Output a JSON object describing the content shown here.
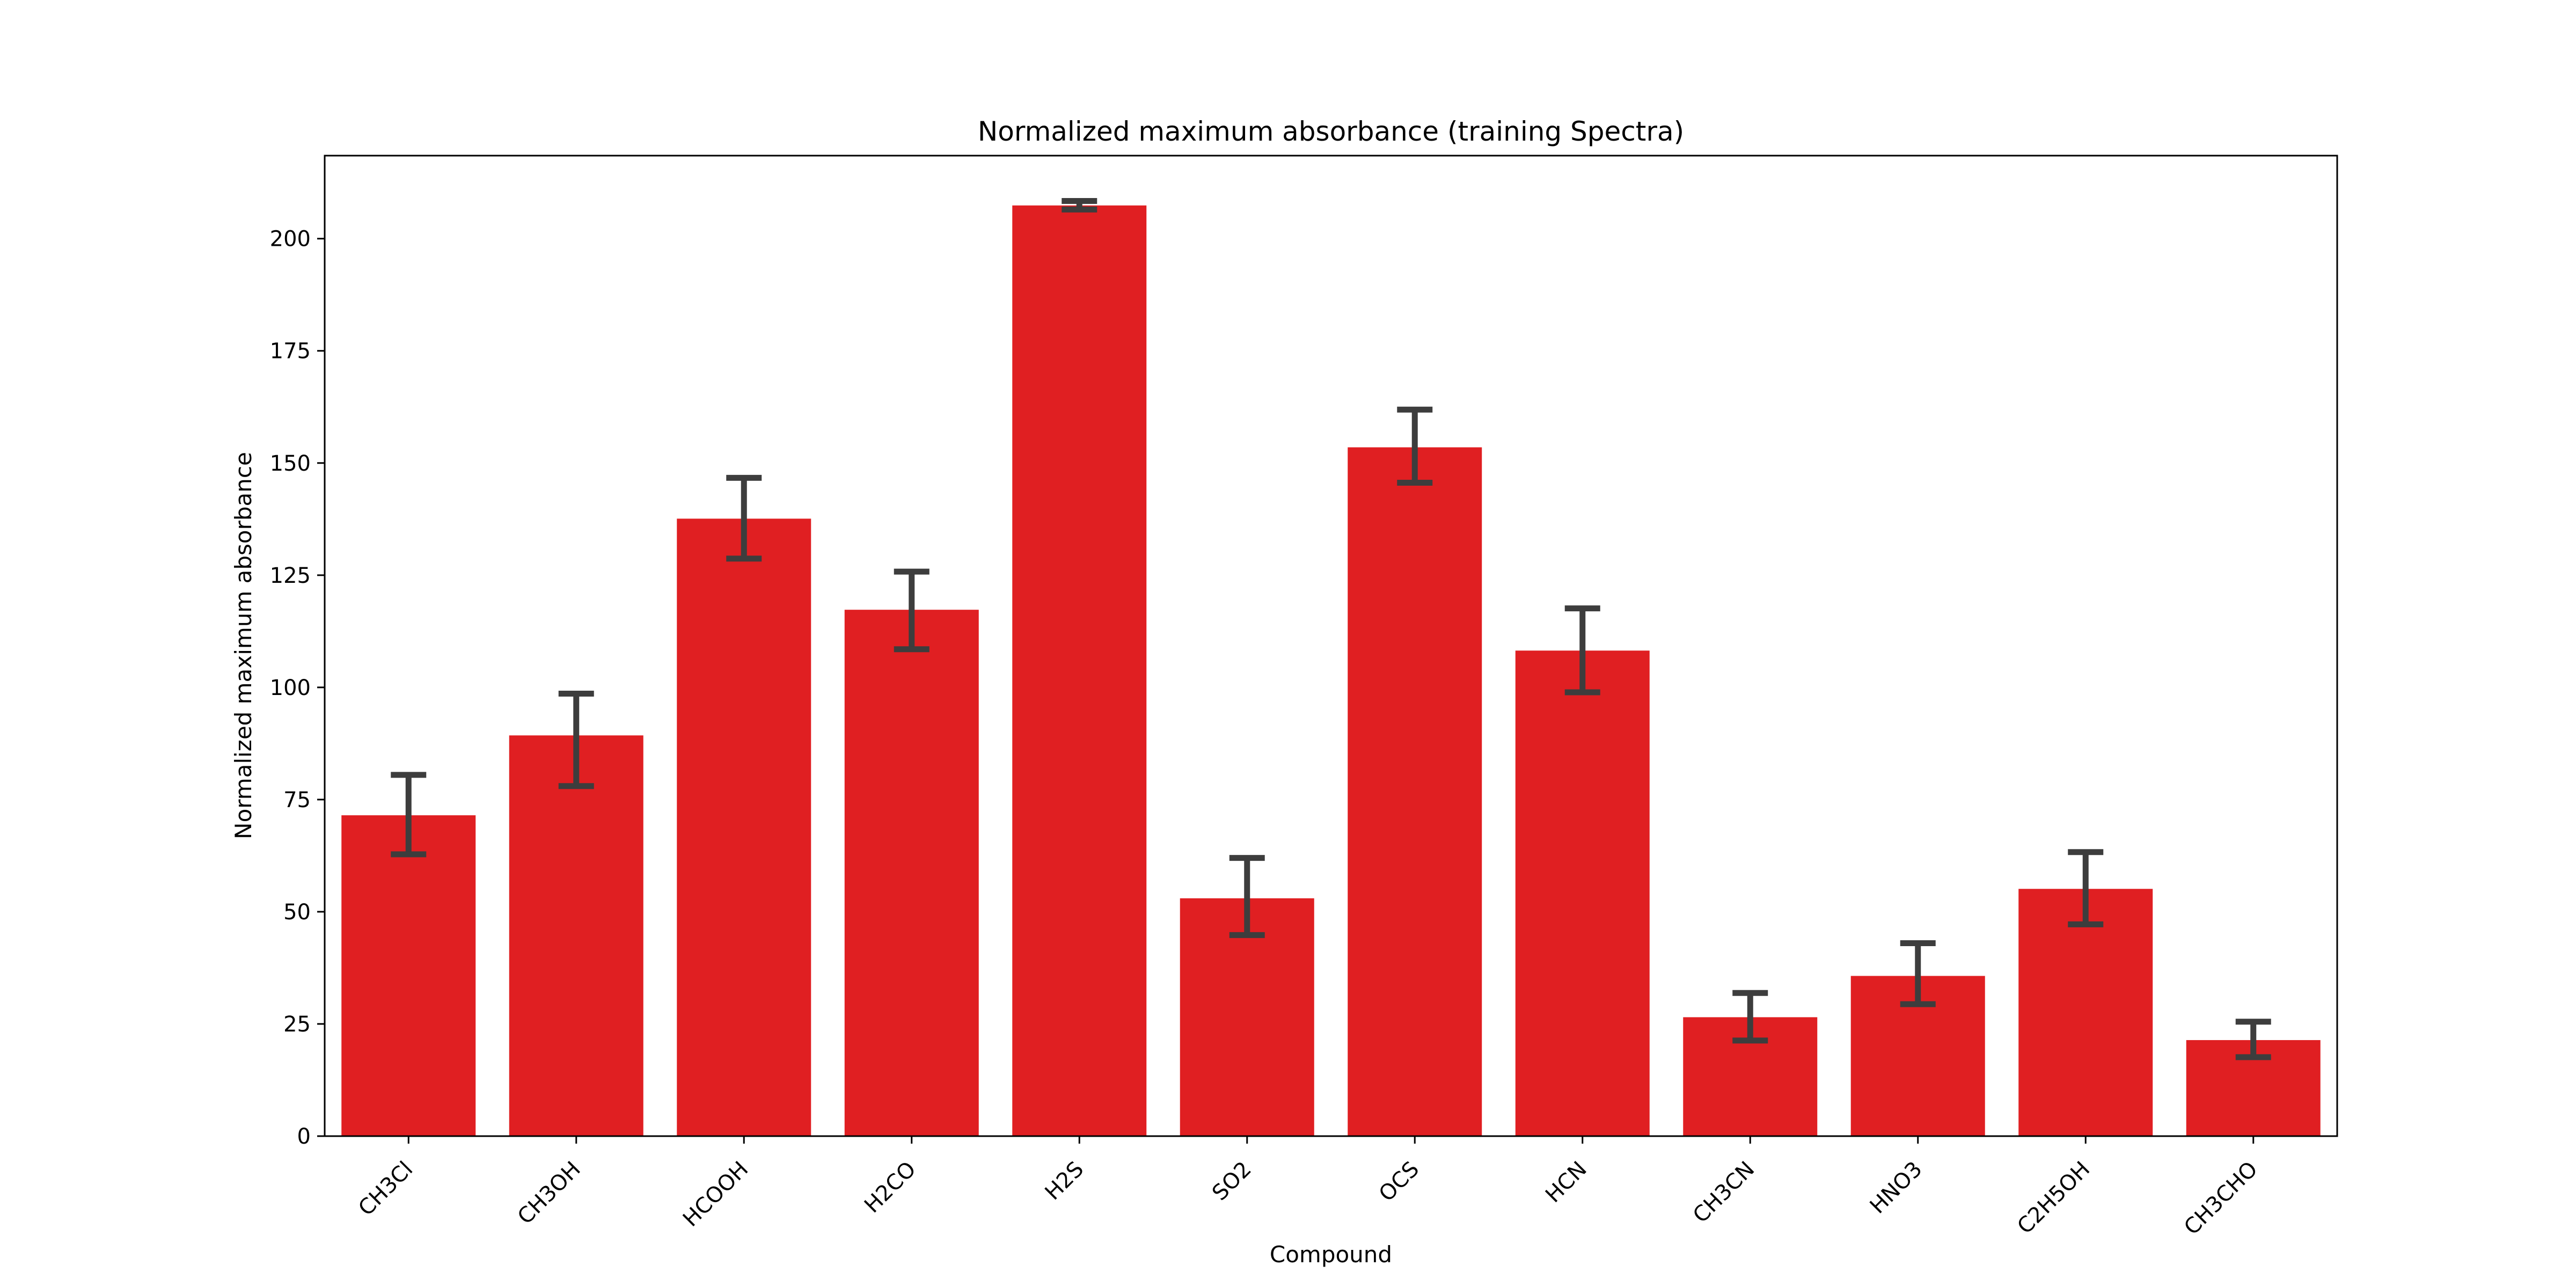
{
  "chart_data": {
    "type": "bar",
    "title": "Normalized maximum absorbance (training Spectra)",
    "xlabel": "Compound",
    "ylabel": "Normalized maximum absorbance",
    "categories": [
      "CH3Cl",
      "CH3OH",
      "HCOOH",
      "H2CO",
      "H2S",
      "SO2",
      "OCS",
      "HCN",
      "CH3CN",
      "HNO3",
      "C2H5OH",
      "CH3CHO"
    ],
    "values": [
      71.5,
      89.3,
      137.6,
      117.3,
      207.4,
      53.0,
      153.5,
      108.2,
      26.5,
      35.7,
      55.1,
      21.4
    ],
    "error_low": [
      62.8,
      78.0,
      128.7,
      108.5,
      206.5,
      44.8,
      145.6,
      98.9,
      21.3,
      29.4,
      47.2,
      17.6
    ],
    "error_high": [
      80.5,
      98.6,
      146.7,
      125.8,
      208.4,
      62.0,
      161.9,
      117.6,
      31.9,
      43.0,
      63.3,
      25.5
    ],
    "yticks": [
      0,
      25,
      50,
      75,
      100,
      125,
      150,
      175,
      200
    ],
    "ylim": [
      0,
      218.5
    ],
    "grid": false,
    "legend": "none",
    "colors": {
      "bar": "#e01f22",
      "errorbar": "#3d3d3d",
      "axis": "#000000"
    }
  }
}
